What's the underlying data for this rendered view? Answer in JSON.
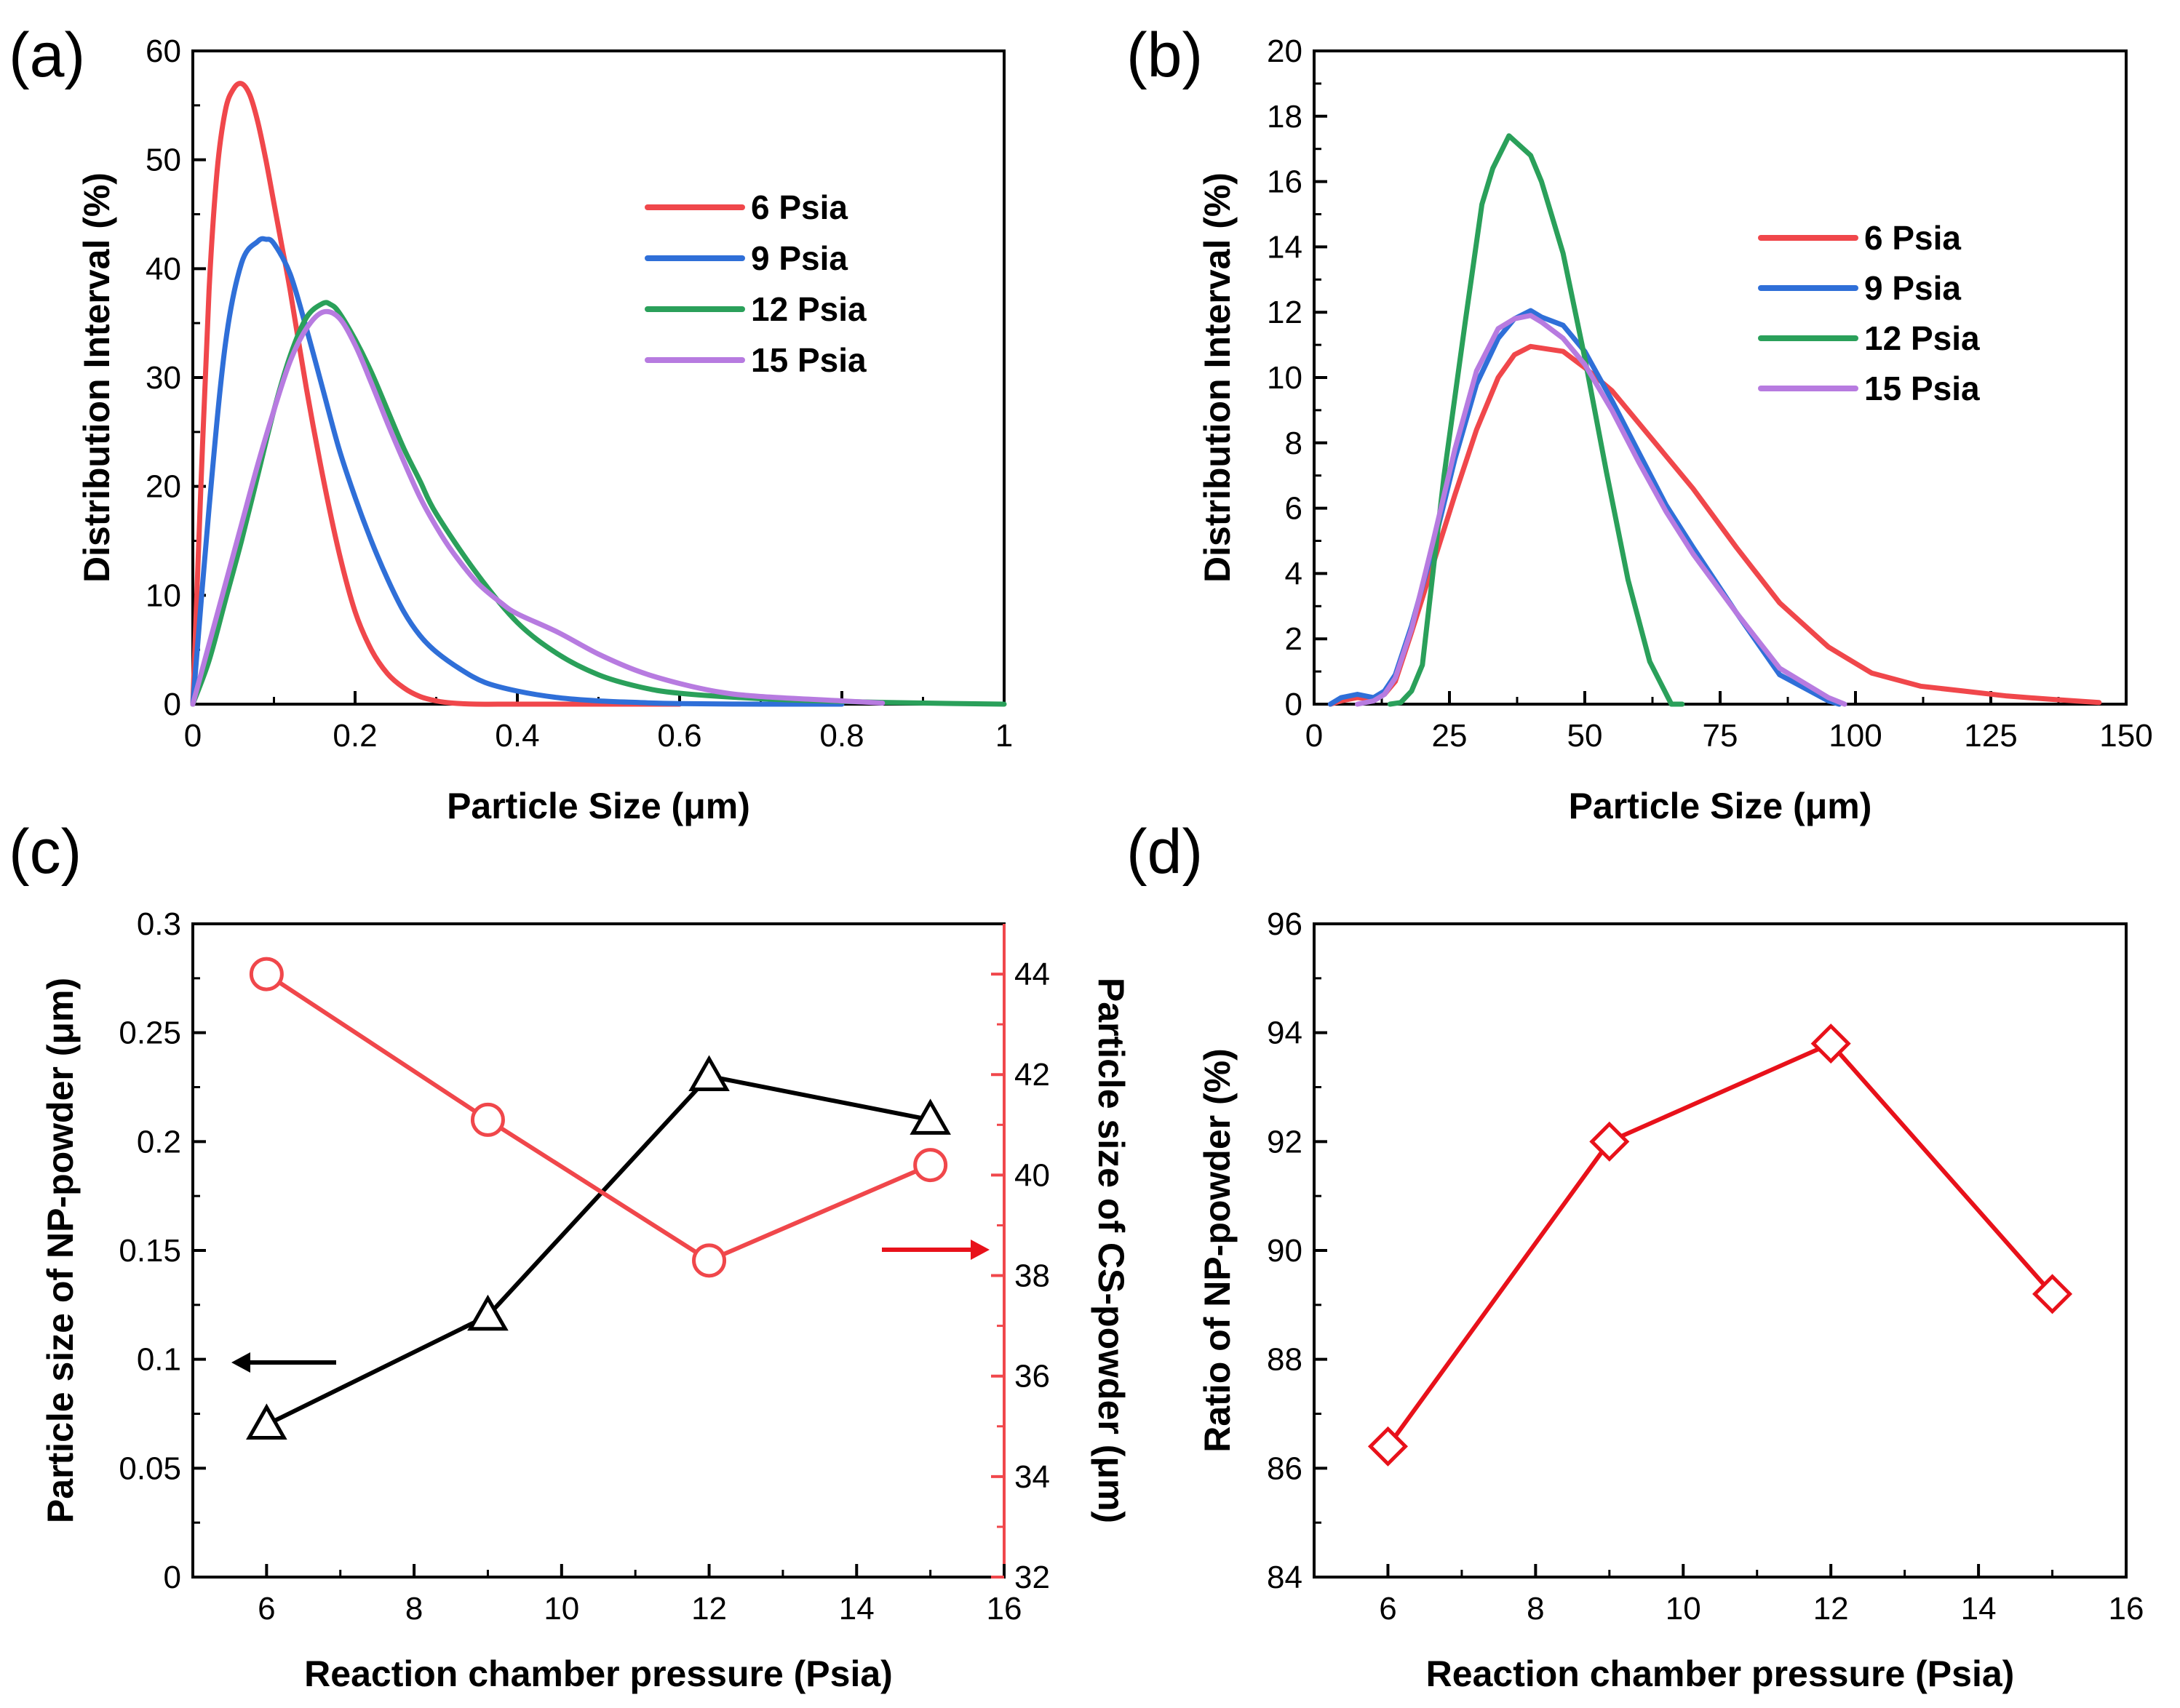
{
  "chart_data": [
    {
      "panel": "(a)",
      "type": "line",
      "xlabel": "Particle Size (μm)",
      "ylabel": "Distribution Interval (%)",
      "xlim": [
        0,
        1
      ],
      "ylim": [
        0,
        60
      ],
      "xticks": [
        0,
        0.2,
        0.4,
        0.6,
        0.8,
        1
      ],
      "xtick_labels": [
        "0",
        "0.2",
        "0.4",
        "0.6",
        "0.8",
        "1"
      ],
      "yticks": [
        0,
        10,
        20,
        30,
        40,
        50,
        60
      ],
      "ytick_labels": [
        "0",
        "10",
        "20",
        "30",
        "40",
        "50",
        "60"
      ],
      "legend": "upper-right",
      "series": [
        {
          "name": "6 Psia",
          "color": "#f0474b",
          "x": [
            0,
            0.01,
            0.02,
            0.03,
            0.04,
            0.05,
            0.06,
            0.07,
            0.08,
            0.09,
            0.1,
            0.11,
            0.12,
            0.14,
            0.16,
            0.18,
            0.2,
            0.22,
            0.24,
            0.26,
            0.28,
            0.3,
            0.32,
            0.35,
            0.4,
            0.5,
            0.6
          ],
          "y": [
            0,
            20,
            38,
            49,
            54.5,
            56.5,
            57,
            56,
            53.5,
            50,
            46,
            42,
            38,
            29,
            21,
            14,
            8.5,
            5,
            2.8,
            1.5,
            0.7,
            0.3,
            0.1,
            0,
            0,
            0,
            0
          ]
        },
        {
          "name": "9 Psia",
          "color": "#2f6fd8",
          "x": [
            0,
            0.02,
            0.04,
            0.06,
            0.08,
            0.09,
            0.1,
            0.12,
            0.14,
            0.16,
            0.18,
            0.2,
            0.22,
            0.24,
            0.26,
            0.28,
            0.3,
            0.33,
            0.36,
            0.4,
            0.45,
            0.5,
            0.55,
            0.6,
            0.7,
            0.8
          ],
          "y": [
            0,
            18,
            33,
            40.5,
            42.5,
            42.7,
            42.3,
            39.5,
            34.5,
            29,
            23.5,
            19,
            15,
            11.5,
            8.5,
            6.3,
            4.8,
            3.2,
            2,
            1.2,
            0.6,
            0.3,
            0.15,
            0.05,
            0,
            0
          ]
        },
        {
          "name": "12 Psia",
          "color": "#2aa05a",
          "x": [
            0,
            0.02,
            0.04,
            0.06,
            0.08,
            0.1,
            0.12,
            0.14,
            0.16,
            0.17,
            0.18,
            0.2,
            0.22,
            0.24,
            0.26,
            0.28,
            0.3,
            0.35,
            0.4,
            0.45,
            0.5,
            0.55,
            0.6,
            0.7,
            0.8,
            0.9,
            1
          ],
          "y": [
            0,
            4,
            9.5,
            15,
            21,
            27,
            32,
            35.5,
            36.8,
            36.7,
            36,
            33.5,
            30.5,
            27,
            23.5,
            20.5,
            17.5,
            12,
            7.5,
            4.6,
            2.7,
            1.6,
            1,
            0.5,
            0.25,
            0.1,
            0
          ]
        },
        {
          "name": "15 Psia",
          "color": "#b77be0",
          "x": [
            0,
            0.02,
            0.04,
            0.06,
            0.08,
            0.1,
            0.12,
            0.14,
            0.16,
            0.18,
            0.2,
            0.22,
            0.24,
            0.26,
            0.28,
            0.3,
            0.32,
            0.35,
            0.38,
            0.4,
            0.45,
            0.5,
            0.55,
            0.6,
            0.65,
            0.7,
            0.8,
            0.85
          ],
          "y": [
            0,
            5.5,
            11,
            16.5,
            22,
            27,
            31.5,
            34.5,
            36,
            35.5,
            33,
            29.5,
            25.8,
            22.3,
            19,
            16.3,
            14,
            11.2,
            9.3,
            8.3,
            6.6,
            4.6,
            3,
            1.9,
            1.1,
            0.7,
            0.3,
            0.1
          ]
        }
      ]
    },
    {
      "panel": "(b)",
      "type": "line",
      "xlabel": "Particle Size (μm)",
      "ylabel": "Distribution Interval (%)",
      "xlim": [
        0,
        150
      ],
      "ylim": [
        0,
        20
      ],
      "xticks": [
        0,
        25,
        50,
        75,
        100,
        125,
        150
      ],
      "xtick_labels": [
        "0",
        "25",
        "50",
        "75",
        "100",
        "125",
        "150"
      ],
      "yticks": [
        0,
        2,
        4,
        6,
        8,
        10,
        12,
        14,
        16,
        18,
        20
      ],
      "ytick_labels": [
        "0",
        "2",
        "4",
        "6",
        "8",
        "10",
        "12",
        "14",
        "16",
        "18",
        "20"
      ],
      "legend": "upper-right",
      "series": [
        {
          "name": "6 Psia",
          "color": "#f0474b",
          "x": [
            3,
            5,
            8,
            11,
            13,
            15,
            18,
            22,
            26,
            30,
            34,
            37,
            40,
            42,
            46,
            50,
            55,
            60,
            65,
            70,
            78,
            86,
            95,
            103,
            112,
            120,
            128,
            136,
            145
          ],
          "y": [
            0,
            0.1,
            0.2,
            0.15,
            0.3,
            0.7,
            2.2,
            4.3,
            6.4,
            8.4,
            10,
            10.7,
            10.95,
            10.9,
            10.8,
            10.3,
            9.6,
            8.6,
            7.6,
            6.6,
            4.8,
            3.1,
            1.75,
            0.95,
            0.55,
            0.4,
            0.25,
            0.15,
            0.05
          ]
        },
        {
          "name": "9 Psia",
          "color": "#2f6fd8",
          "x": [
            3,
            5,
            8,
            11,
            13,
            15,
            18,
            22,
            26,
            30,
            34,
            37,
            40,
            42,
            46,
            50,
            55,
            60,
            65,
            70,
            78,
            86,
            95,
            97
          ],
          "y": [
            0,
            0.2,
            0.3,
            0.2,
            0.4,
            0.9,
            2.4,
            4.8,
            7.5,
            9.8,
            11.2,
            11.8,
            12.05,
            11.85,
            11.6,
            10.8,
            9.3,
            7.7,
            6.1,
            4.8,
            2.8,
            0.9,
            0.1,
            0
          ]
        },
        {
          "name": "12 Psia",
          "color": "#2aa05a",
          "x": [
            14,
            16,
            18,
            20,
            24,
            28,
            31,
            33,
            36,
            38,
            40,
            42,
            44,
            46,
            50,
            54,
            58,
            62,
            66,
            68
          ],
          "y": [
            0,
            0.05,
            0.4,
            1.2,
            7,
            11.8,
            15.3,
            16.4,
            17.4,
            17.1,
            16.8,
            16,
            14.9,
            13.8,
            10.6,
            7.1,
            3.8,
            1.3,
            0,
            0
          ]
        },
        {
          "name": "15 Psia",
          "color": "#b77be0",
          "x": [
            8,
            11,
            13,
            15,
            18,
            22,
            26,
            30,
            34,
            37,
            40,
            42,
            46,
            50,
            55,
            60,
            65,
            70,
            78,
            86,
            95,
            98
          ],
          "y": [
            0,
            0.1,
            0.3,
            0.8,
            2.3,
            5,
            7.8,
            10.2,
            11.5,
            11.8,
            11.9,
            11.7,
            11.2,
            10.4,
            9,
            7.4,
            5.9,
            4.6,
            2.8,
            1.1,
            0.2,
            0
          ]
        }
      ]
    },
    {
      "panel": "(c)",
      "type": "line",
      "xlabel": "Reaction chamber pressure (Psia)",
      "ylabel": "Particle size of NP-powder (μm)",
      "ylabel_right": "Particle size of CS-powder (μm)",
      "xlim": [
        5,
        16
      ],
      "ylim": [
        0,
        0.3
      ],
      "ylim_right": [
        32,
        45
      ],
      "xticks": [
        6,
        8,
        10,
        12,
        14,
        16
      ],
      "xtick_labels": [
        "6",
        "8",
        "10",
        "12",
        "14",
        "16"
      ],
      "yticks": [
        0,
        0.05,
        0.1,
        0.15,
        0.2,
        0.25,
        0.3
      ],
      "ytick_labels": [
        "0",
        "0.05",
        "0.1",
        "0.15",
        "0.2",
        "0.25",
        "0.3"
      ],
      "yticks_right": [
        32,
        34,
        36,
        38,
        40,
        42,
        44
      ],
      "ytick_labels_right": [
        "32",
        "34",
        "36",
        "38",
        "40",
        "42",
        "44"
      ],
      "series": [
        {
          "name": "NP-powder",
          "axis": "left",
          "marker": "triangle",
          "color": "#000000",
          "x": [
            6,
            9,
            12,
            15
          ],
          "y": [
            0.07,
            0.12,
            0.23,
            0.21
          ]
        },
        {
          "name": "CS-powder",
          "axis": "right",
          "marker": "circle",
          "color": "#f0474b",
          "x": [
            6,
            9,
            12,
            15
          ],
          "y": [
            44,
            41.1,
            38.3,
            40.2
          ]
        }
      ],
      "annotations": [
        {
          "type": "arrow",
          "direction": "left",
          "color": "#000000",
          "refers_to": "left-axis"
        },
        {
          "type": "arrow",
          "direction": "right",
          "color": "#e8111a",
          "refers_to": "right-axis"
        }
      ]
    },
    {
      "panel": "(d)",
      "type": "line",
      "xlabel": "Reaction chamber pressure (Psia)",
      "ylabel": "Ratio of NP-powder (%)",
      "xlim": [
        5,
        16
      ],
      "ylim": [
        84,
        96
      ],
      "xticks": [
        6,
        8,
        10,
        12,
        14,
        16
      ],
      "xtick_labels": [
        "6",
        "8",
        "10",
        "12",
        "14",
        "16"
      ],
      "yticks": [
        84,
        86,
        88,
        90,
        92,
        94,
        96
      ],
      "ytick_labels": [
        "84",
        "86",
        "88",
        "90",
        "92",
        "94",
        "96"
      ],
      "series": [
        {
          "name": "Ratio of NP-powder",
          "marker": "diamond",
          "color": "#e8111a",
          "x": [
            6,
            9,
            12,
            15
          ],
          "y": [
            86.4,
            92,
            93.8,
            89.2
          ]
        }
      ]
    }
  ]
}
